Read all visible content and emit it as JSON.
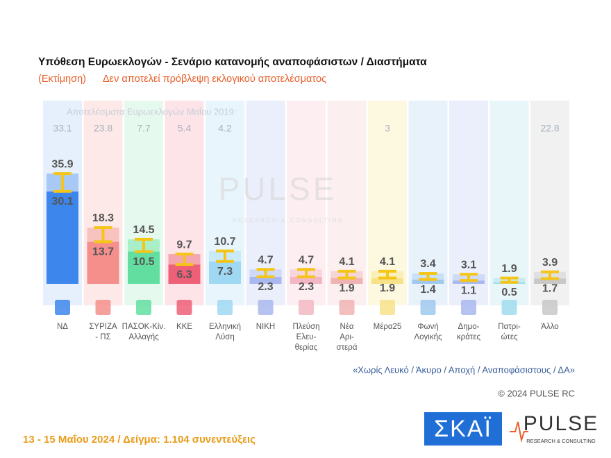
{
  "chart_data": {
    "type": "range-bar",
    "title": "Υπόθεση Ευρωεκλογών - Σενάριο κατανομής αναποφάσιστων / Διαστήματα",
    "subtitle_prefix": "(Εκτίμηση)",
    "subtitle": "Δεν αποτελεί πρόβλεψη εκλογικού αποτελέσματος",
    "results_2019_label": "Αποτελέσματα Ευρωεκλογών Μαΐου 2019:",
    "categories": [
      "ΝΔ",
      "ΣΥΡΙΖΑ\n- ΠΣ",
      "ΠΑΣΟΚ-Κίν.\nΑλλαγής",
      "ΚΚΕ",
      "Ελληνική\nΛύση",
      "ΝΙΚΗ",
      "Πλεύση\nΕλευ-\nθερίας",
      "Νέα\nΑρι-\nστερά",
      "Μέρα25",
      "Φωνή\nΛογικής",
      "Δημο-\nκράτες",
      "Πατρι-\nώτες",
      "Άλλο"
    ],
    "results_2019": [
      33.1,
      23.8,
      7.7,
      5.4,
      4.2,
      null,
      null,
      null,
      3,
      null,
      null,
      null,
      22.8
    ],
    "low": [
      30.1,
      13.7,
      10.5,
      6.3,
      7.3,
      2.3,
      2.3,
      1.9,
      1.9,
      1.4,
      1.1,
      0.5,
      1.7
    ],
    "high": [
      35.9,
      18.3,
      14.5,
      9.7,
      10.7,
      4.7,
      4.7,
      4.1,
      4.1,
      3.4,
      3.1,
      1.9,
      3.9
    ],
    "bar_colors": [
      "#3d86ec",
      "#f48f8c",
      "#62dfa0",
      "#ee5f78",
      "#9fd8f2",
      "#a9b8ef",
      "#f2b7c2",
      "#f0b3b3",
      "#f7e28a",
      "#9fc9ef",
      "#a9b8ef",
      "#9fdcec",
      "#c8c8c8"
    ],
    "band_colors": [
      "#a8c9f6",
      "#f8c2bf",
      "#a8efc8",
      "#f5a6b3",
      "#c9eaf9",
      "#d0daf6",
      "#f7d6dc",
      "#f5d5d5",
      "#fbefb8",
      "#c9e1f6",
      "#d0daf6",
      "#c9ecf4",
      "#e0e0e0"
    ],
    "column_colors": [
      "#e6effc",
      "#fde9e8",
      "#e6f9ef",
      "#fde4e8",
      "#e8f5fc",
      "#ebeefb",
      "#fceef1",
      "#fcefef",
      "#fdf8e0",
      "#e8f2fb",
      "#ebeefb",
      "#e8f6fa",
      "#f1f1f1"
    ],
    "whisker_color": "#f5c518",
    "ylim": [
      0,
      40
    ],
    "note": "«Χωρίς Λευκό / Άκυρο / Αποχή / Αναποφάσιστους / ΔΑ»",
    "copyright": "© 2024 PULSE RC",
    "footer": "13 - 15  Μαΐου 2024  /  Δείγμα:  1.104 συνεντεύξεις",
    "brand_tv": "ΣΚΑΪ",
    "brand_pulse": "PULSE",
    "brand_pulse_sub": "RESEARCH & CONSULTING"
  }
}
